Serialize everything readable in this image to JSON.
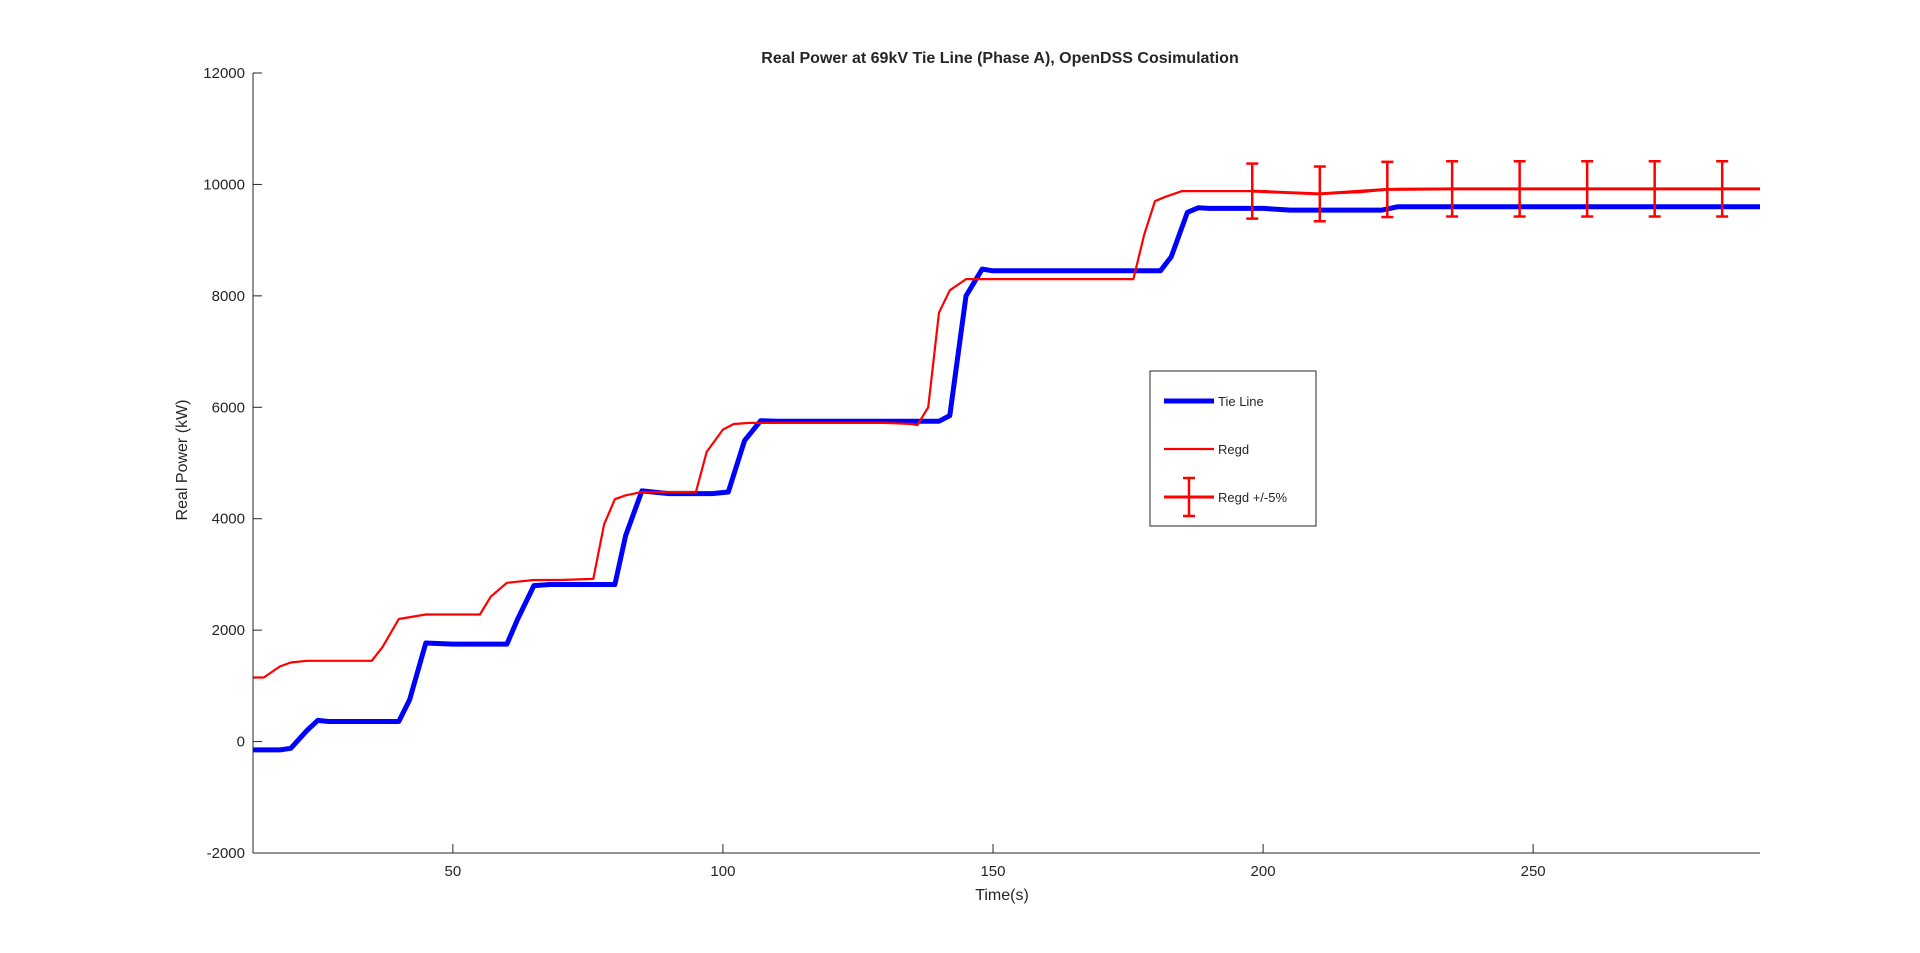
{
  "chart_data": {
    "type": "line",
    "title": "Real Power at 69kV Tie Line (Phase A), OpenDSS Cosimulation",
    "xlabel": "Time(s)",
    "ylabel": "Real Power (kW)",
    "xlim": [
      13,
      292
    ],
    "ylim": [
      -2000,
      12000
    ],
    "xticks": [
      50,
      100,
      150,
      200,
      250
    ],
    "yticks": [
      -2000,
      0,
      2000,
      4000,
      6000,
      8000,
      10000,
      12000
    ],
    "grid": false,
    "legend_position": "center-right",
    "series": [
      {
        "name": "Tie Line",
        "color": "#0000ff",
        "style": "thick",
        "x": [
          13,
          18,
          20,
          23,
          25,
          27,
          30,
          40,
          42,
          45,
          50,
          55,
          60,
          62,
          65,
          68,
          80,
          82,
          85,
          90,
          98,
          101,
          104,
          107,
          110,
          140,
          142,
          145,
          148,
          150,
          181,
          183,
          186,
          188,
          190,
          200,
          205,
          210,
          222,
          225,
          292
        ],
        "y": [
          -150,
          -150,
          -120,
          200,
          380,
          360,
          360,
          360,
          750,
          1770,
          1750,
          1750,
          1750,
          2200,
          2800,
          2820,
          2820,
          3700,
          4500,
          4450,
          4450,
          4480,
          5400,
          5760,
          5750,
          5750,
          5850,
          8000,
          8480,
          8450,
          8450,
          8700,
          9500,
          9580,
          9570,
          9570,
          9540,
          9540,
          9540,
          9600,
          9600
        ]
      },
      {
        "name": "Regd",
        "color": "#ff0000",
        "style": "thin",
        "x": [
          13,
          15,
          18,
          20,
          23,
          30,
          35,
          37,
          40,
          45,
          50,
          55,
          57,
          60,
          65,
          70,
          76,
          78,
          80,
          82,
          85,
          90,
          95,
          97,
          100,
          102,
          105,
          110,
          130,
          135,
          136,
          138,
          140,
          142,
          145,
          150,
          176,
          178,
          180,
          182,
          185,
          190,
          200,
          205,
          210,
          218,
          222,
          225,
          292
        ],
        "y": [
          1150,
          1150,
          1350,
          1420,
          1450,
          1450,
          1450,
          1700,
          2200,
          2280,
          2280,
          2280,
          2600,
          2850,
          2900,
          2900,
          2920,
          3900,
          4350,
          4420,
          4480,
          4480,
          4480,
          5200,
          5600,
          5700,
          5720,
          5720,
          5720,
          5700,
          5680,
          6000,
          7700,
          8100,
          8300,
          8300,
          8300,
          9100,
          9700,
          9780,
          9880,
          9880,
          9880,
          9850,
          9830,
          9860,
          9900,
          9920,
          9920
        ]
      },
      {
        "name": "Regd +/-5%",
        "color": "#ff0000",
        "style": "errorbar",
        "x": [
          198,
          210.5,
          223,
          235,
          247.5,
          260,
          272.5,
          285,
          292
        ],
        "y": [
          9880,
          9830,
          9910,
          9920,
          9920,
          9920,
          9920,
          9920,
          9920
        ],
        "error_pct": 5,
        "bar_indices": [
          0,
          1,
          2,
          3,
          4,
          5,
          6,
          7
        ]
      }
    ]
  }
}
